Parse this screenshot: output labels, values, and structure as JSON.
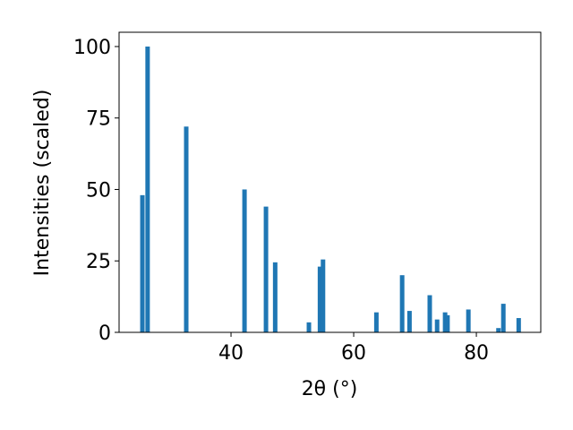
{
  "chart_data": {
    "type": "bar",
    "xlabel": "2θ (°)",
    "ylabel": "Intensities (scaled)",
    "x": [
      25.55,
      26.4,
      32.7,
      42.2,
      45.7,
      47.2,
      52.7,
      54.5,
      55.0,
      63.7,
      67.9,
      69.1,
      72.4,
      73.6,
      74.9,
      75.3,
      78.7,
      83.6,
      84.4,
      86.9
    ],
    "values": [
      48,
      100,
      72,
      50,
      44,
      24.5,
      3.5,
      23,
      25.5,
      7,
      20,
      7.5,
      13,
      4.5,
      7,
      6,
      8,
      1.5,
      10,
      5
    ],
    "color": "#1f77b4",
    "xlim": [
      21.75,
      90.5
    ],
    "xticks": [
      40,
      60,
      80
    ],
    "ylim": [
      0,
      105
    ],
    "yticks": [
      0,
      25,
      50,
      75,
      100
    ]
  }
}
